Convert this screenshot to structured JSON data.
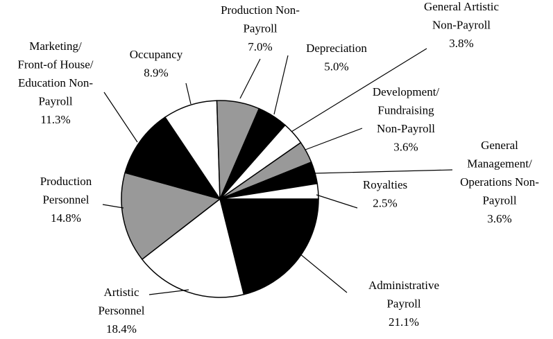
{
  "chart_data": {
    "type": "pie",
    "categories": [
      "Administrative\nPayroll",
      "Artistic\nPersonnel",
      "Production\nPersonnel",
      "Marketing/\nFront-of House/\nEducation Non-\nPayroll",
      "Occupancy",
      "Production Non-\nPayroll",
      "Depreciation",
      "General Artistic\nNon-Payroll",
      "Development/\nFundraising\nNon-Payroll",
      "General\nManagement/\nOperations Non-\nPayroll",
      "Royalties"
    ],
    "values": [
      21.1,
      18.4,
      14.8,
      11.3,
      8.9,
      7.0,
      5.0,
      3.8,
      3.6,
      3.6,
      2.5
    ],
    "value_labels": [
      "21.1%",
      "18.4%",
      "14.8%",
      "11.3%",
      "8.9%",
      "7.0%",
      "5.0%",
      "3.8%",
      "3.6%",
      "3.6%",
      "2.5%"
    ],
    "colors": [
      "#000000",
      "#ffffff",
      "#999999",
      "#000000",
      "#ffffff",
      "#999999",
      "#000000",
      "#ffffff",
      "#999999",
      "#000000",
      "#ffffff"
    ]
  }
}
